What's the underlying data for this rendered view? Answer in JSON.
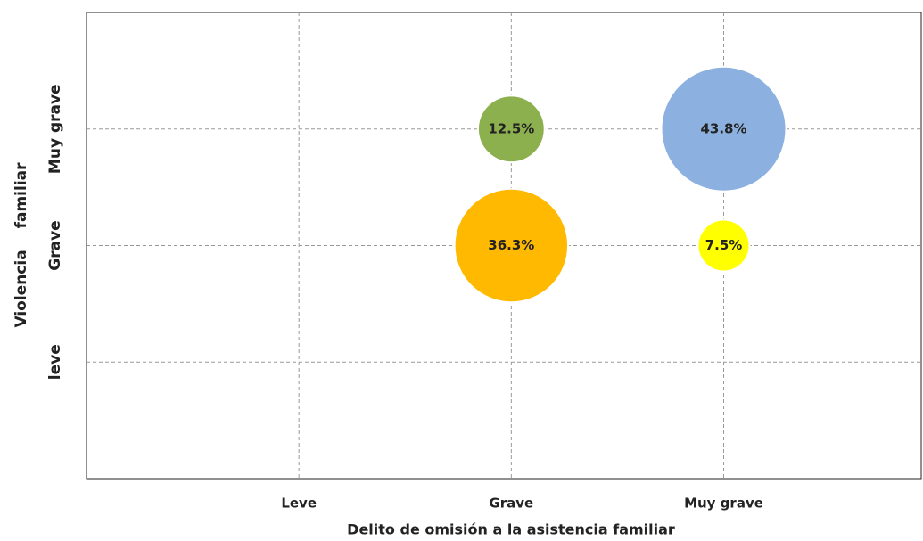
{
  "chart_data": {
    "type": "bubble",
    "xlabel": "Delito de omisión a la asistencia familiar",
    "ylabel": "Violencia familiar",
    "x": [
      2,
      3,
      2,
      3
    ],
    "y": [
      3,
      3,
      2,
      2
    ],
    "sizes": [
      12.5,
      43.8,
      36.3,
      7.5
    ],
    "value_labels": [
      "12.5%",
      "43.8%",
      "36.3%",
      "7.5%"
    ],
    "colors": [
      "#8db04f",
      "#8cb1e0",
      "#ffb900",
      "#ffff00"
    ],
    "xlim": [
      0,
      3.93
    ],
    "ylim": [
      0,
      4
    ],
    "xticks": [
      {
        "value": 1,
        "label": "Leve"
      },
      {
        "value": 2,
        "label": "Grave"
      },
      {
        "value": 3,
        "label": "Muy grave"
      }
    ],
    "yticks": [
      {
        "value": 1,
        "label": "leve"
      },
      {
        "value": 2,
        "label": "Grave"
      },
      {
        "value": 3,
        "label": "Muy grave"
      }
    ],
    "grid": true
  }
}
